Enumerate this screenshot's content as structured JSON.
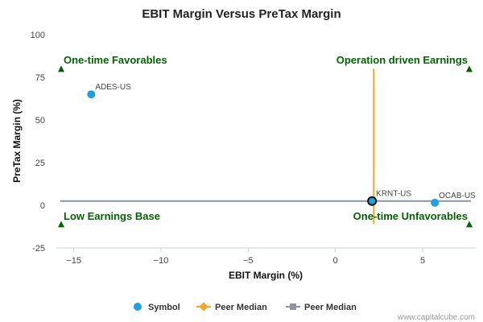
{
  "chart_data": {
    "type": "scatter",
    "title": "EBIT Margin Versus PreTax Margin",
    "xlabel": "EBIT Margin (%)",
    "ylabel": "PreTax Margin (%)",
    "xlim": [
      -16,
      8
    ],
    "ylim": [
      -25,
      100
    ],
    "x_ticks": [
      -15,
      -10,
      -5,
      0,
      5
    ],
    "y_ticks": [
      100,
      75,
      50,
      25,
      0,
      -25
    ],
    "points": [
      {
        "label": "ADES-US",
        "x": -14.0,
        "y": 65.0
      },
      {
        "label": "KRNT-US",
        "x": 2.1,
        "y": 2.5,
        "highlight": true
      },
      {
        "label": "OCAB-US",
        "x": 5.7,
        "y": 1.5
      }
    ],
    "peer_median_x": 2.2,
    "peer_median_y": 2.5,
    "quadrants": {
      "top_left": "One-time Favorables",
      "top_right": "Operation driven Earnings",
      "bottom_left": "Low Earnings Base",
      "bottom_right": "One-time Unfavorables"
    },
    "legend": [
      {
        "label": "Symbol",
        "color": "#1fa0e6"
      },
      {
        "label": "Peer Median",
        "color": "#f5a623"
      },
      {
        "label": "Peer Median",
        "color": "#8c94a0"
      }
    ],
    "colors": {
      "symbol": "#1fa0e6",
      "median_x_line": "#f5a623",
      "median_y_line": "#8c94a0",
      "quadrant_text": "#006400",
      "triangle": "#006400"
    }
  },
  "credit": "www.capitalcube.com"
}
